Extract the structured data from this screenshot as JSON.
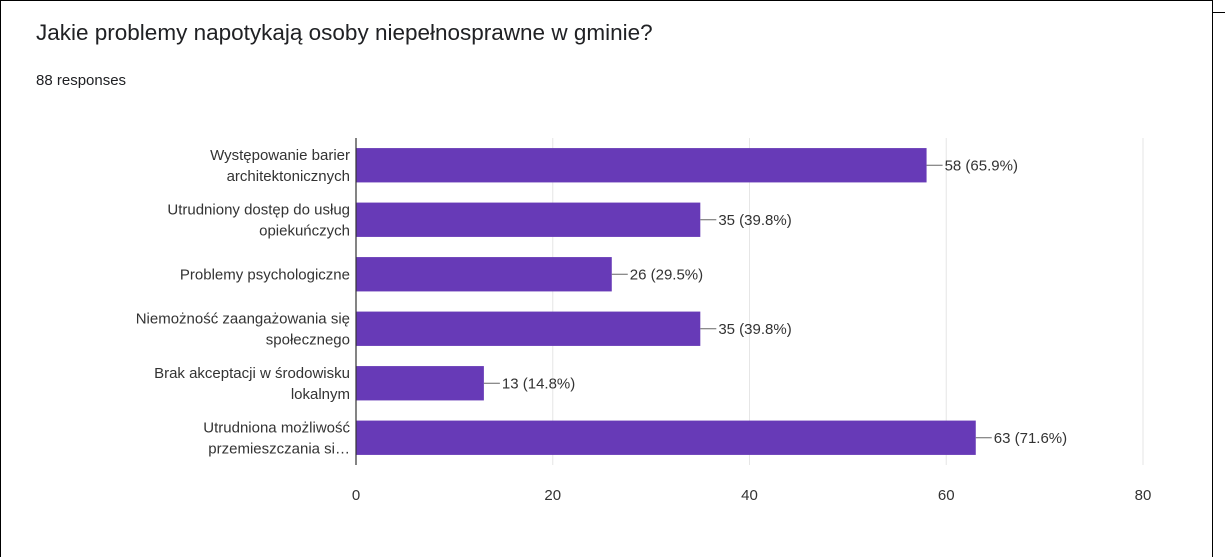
{
  "question": {
    "title": "Jakie problemy napotykają osoby niepełnosprawne w gminie?",
    "responses": "88 responses"
  },
  "chart_data": {
    "type": "bar",
    "orientation": "horizontal",
    "categories": [
      [
        "Występowanie barier",
        "architektonicznych"
      ],
      [
        "Utrudniony dostęp do usług",
        "opiekuńczych"
      ],
      [
        "Problemy psychologiczne"
      ],
      [
        "Niemożność zaangażowania się",
        "społecznego"
      ],
      [
        "Brak akceptacji w środowisku",
        "lokalnym"
      ],
      [
        "Utrudniona możliwość",
        "przemieszczania si…"
      ]
    ],
    "values": [
      58,
      35,
      26,
      35,
      13,
      63
    ],
    "value_labels": [
      "58 (65.9%)",
      "35 (39.8%)",
      "26 (29.5%)",
      "35 (39.8%)",
      "13 (14.8%)",
      "63 (71.6%)"
    ],
    "xlim": [
      0,
      80
    ],
    "xticks": [
      0,
      20,
      40,
      60,
      80
    ],
    "grid": true,
    "colors": {
      "bar": "#673ab7",
      "grid": "#e6e6e6",
      "axis": "#333333",
      "text": "#333333"
    }
  }
}
